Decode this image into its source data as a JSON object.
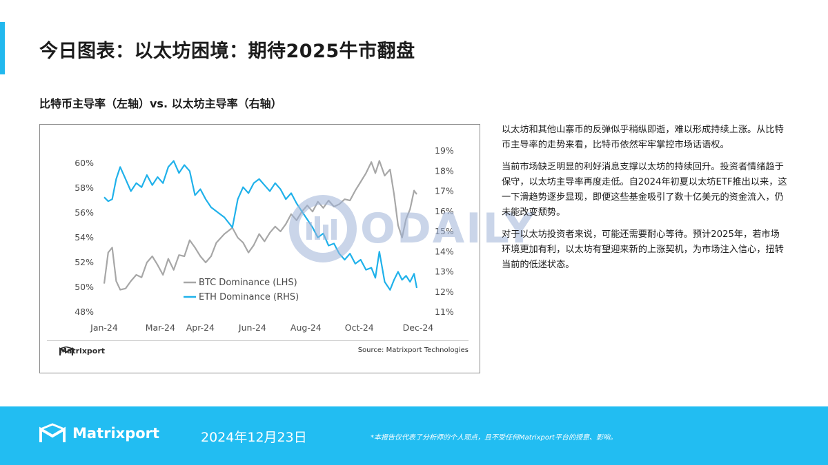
{
  "header": {
    "title": "今日图表：以太坊困境：期待2025牛市翻盘",
    "subtitle": "比特币主导率（左轴）vs. 以太坊主导率（右轴）"
  },
  "chart_footer": {
    "logo_text": "Matrixport",
    "source": "Source: Matrixport Technologies"
  },
  "watermark": {
    "text": "ODAILY"
  },
  "body": {
    "paragraphs": [
      "以太坊和其他山寨币的反弹似乎稍纵即逝，难以形成持续上涨。从比特币主导率的走势来看，比特币依然牢牢掌控市场话语权。",
      "当前市场缺乏明显的利好消息支撑以太坊的持续回升。投资者情绪趋于保守，以太坊主导率再度走低。自2024年初夏以太坊ETF推出以来，这一下滑趋势逐步显现，即便这些基金吸引了数十亿美元的资金流入，仍未能改变颓势。",
      "对于以太坊投资者来说，可能还需要耐心等待。预计2025年，若市场环境更加有利，以太坊有望迎来新的上涨契机，为市场注入信心，扭转当前的低迷状态。"
    ]
  },
  "footer": {
    "logo_text": "Matrixport",
    "date": "2024年12月23日",
    "disclaimer": "*本报告仅代表了分析师的个人观点，且不受任何Matrixport平台的授意、影响。"
  },
  "colors": {
    "accent": "#22bdf2",
    "btc_line": "#a7a7a7",
    "eth_line": "#1fb1ea"
  },
  "chart_data": {
    "type": "line",
    "x_ticks": [
      "Jan-24",
      "Mar-24",
      "Apr-24",
      "Jun-24",
      "Aug-24",
      "Oct-24",
      "Dec-24"
    ],
    "y_left": {
      "ticks": [
        "60%",
        "58%",
        "56%",
        "54%",
        "52%",
        "50%",
        "48%"
      ],
      "ylim": [
        48,
        61
      ]
    },
    "y_right": {
      "ticks": [
        "19%",
        "18%",
        "17%",
        "16%",
        "15%",
        "14%",
        "13%",
        "12%",
        "11%"
      ],
      "ylim": [
        11,
        19.2
      ]
    },
    "grid": false,
    "legend_position": "bottom-center",
    "series": [
      {
        "name": "BTC Dominance (LHS)",
        "axis": "left",
        "values": [
          [
            0,
            50.3
          ],
          [
            0.15,
            52.8
          ],
          [
            0.3,
            53.2
          ],
          [
            0.45,
            50.5
          ],
          [
            0.6,
            49.8
          ],
          [
            0.8,
            49.9
          ],
          [
            1.0,
            50.5
          ],
          [
            1.2,
            51.0
          ],
          [
            1.4,
            50.8
          ],
          [
            1.6,
            52.0
          ],
          [
            1.8,
            52.5
          ],
          [
            2.0,
            51.8
          ],
          [
            2.2,
            51.0
          ],
          [
            2.4,
            52.3
          ],
          [
            2.6,
            51.4
          ],
          [
            2.8,
            52.6
          ],
          [
            3.0,
            52.5
          ],
          [
            3.2,
            53.8
          ],
          [
            3.4,
            53.2
          ],
          [
            3.6,
            52.5
          ],
          [
            3.8,
            52.0
          ],
          [
            4.0,
            52.5
          ],
          [
            4.2,
            53.6
          ],
          [
            4.5,
            54.3
          ],
          [
            4.8,
            54.8
          ],
          [
            5.0,
            54.0
          ],
          [
            5.2,
            53.6
          ],
          [
            5.4,
            52.8
          ],
          [
            5.6,
            53.4
          ],
          [
            5.8,
            54.3
          ],
          [
            6.0,
            53.7
          ],
          [
            6.2,
            54.4
          ],
          [
            6.4,
            54.9
          ],
          [
            6.6,
            54.5
          ],
          [
            6.8,
            55.1
          ],
          [
            7.0,
            55.9
          ],
          [
            7.2,
            55.4
          ],
          [
            7.4,
            56.1
          ],
          [
            7.6,
            56.6
          ],
          [
            7.8,
            56.1
          ],
          [
            8.0,
            56.9
          ],
          [
            8.2,
            56.4
          ],
          [
            8.4,
            57.0
          ],
          [
            8.6,
            56.5
          ],
          [
            8.8,
            56.7
          ],
          [
            9.0,
            57.1
          ],
          [
            9.2,
            57.0
          ],
          [
            9.4,
            57.8
          ],
          [
            9.6,
            58.5
          ],
          [
            9.8,
            59.2
          ],
          [
            10.0,
            60.1
          ],
          [
            10.15,
            59.2
          ],
          [
            10.3,
            60.2
          ],
          [
            10.5,
            59.0
          ],
          [
            10.7,
            59.5
          ],
          [
            10.85,
            57.5
          ],
          [
            11.0,
            55.0
          ],
          [
            11.15,
            54.0
          ],
          [
            11.3,
            55.5
          ],
          [
            11.45,
            56.3
          ],
          [
            11.6,
            57.8
          ],
          [
            11.7,
            57.5
          ]
        ]
      },
      {
        "name": "ETH Dominance (RHS)",
        "axis": "right",
        "values": [
          [
            0,
            16.7
          ],
          [
            0.15,
            16.5
          ],
          [
            0.3,
            16.6
          ],
          [
            0.45,
            17.6
          ],
          [
            0.6,
            18.2
          ],
          [
            0.8,
            17.6
          ],
          [
            1.0,
            17.0
          ],
          [
            1.2,
            17.4
          ],
          [
            1.4,
            17.2
          ],
          [
            1.6,
            17.8
          ],
          [
            1.8,
            17.3
          ],
          [
            2.0,
            17.7
          ],
          [
            2.2,
            17.4
          ],
          [
            2.4,
            18.2
          ],
          [
            2.6,
            18.5
          ],
          [
            2.8,
            17.9
          ],
          [
            3.0,
            18.3
          ],
          [
            3.2,
            18.0
          ],
          [
            3.4,
            16.8
          ],
          [
            3.6,
            17.1
          ],
          [
            3.8,
            16.6
          ],
          [
            4.0,
            16.2
          ],
          [
            4.2,
            16.0
          ],
          [
            4.5,
            15.7
          ],
          [
            4.8,
            15.2
          ],
          [
            5.0,
            16.6
          ],
          [
            5.2,
            17.2
          ],
          [
            5.4,
            16.9
          ],
          [
            5.6,
            17.4
          ],
          [
            5.8,
            17.6
          ],
          [
            6.0,
            17.3
          ],
          [
            6.2,
            17.0
          ],
          [
            6.4,
            17.4
          ],
          [
            6.6,
            17.1
          ],
          [
            6.8,
            16.6
          ],
          [
            7.0,
            16.9
          ],
          [
            7.2,
            16.4
          ],
          [
            7.4,
            16.0
          ],
          [
            7.6,
            15.6
          ],
          [
            7.8,
            15.2
          ],
          [
            8.0,
            14.7
          ],
          [
            8.2,
            14.9
          ],
          [
            8.4,
            14.3
          ],
          [
            8.6,
            14.4
          ],
          [
            8.8,
            13.9
          ],
          [
            9.0,
            13.6
          ],
          [
            9.2,
            13.9
          ],
          [
            9.4,
            13.4
          ],
          [
            9.6,
            13.6
          ],
          [
            9.8,
            13.1
          ],
          [
            10.0,
            13.2
          ],
          [
            10.15,
            12.7
          ],
          [
            10.3,
            14.0
          ],
          [
            10.5,
            12.5
          ],
          [
            10.7,
            12.1
          ],
          [
            10.85,
            12.6
          ],
          [
            11.0,
            13.0
          ],
          [
            11.15,
            12.6
          ],
          [
            11.3,
            12.8
          ],
          [
            11.45,
            12.5
          ],
          [
            11.6,
            12.9
          ],
          [
            11.7,
            12.2
          ]
        ]
      }
    ]
  }
}
